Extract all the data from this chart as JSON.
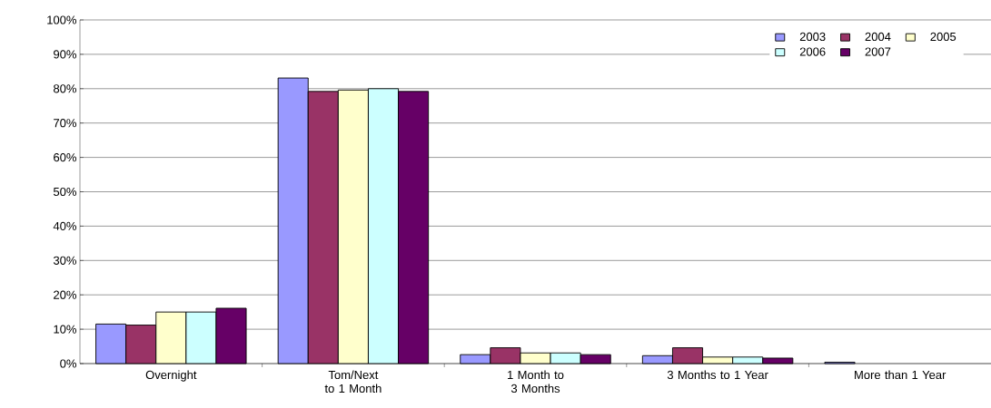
{
  "chart_data": {
    "type": "bar",
    "categories": [
      "Overnight",
      "Tom/Next  to 1 Month",
      "1 Month to 3 Months",
      "3 Months to 1 Year",
      "More than 1 Year"
    ],
    "series": [
      {
        "name": "2003",
        "color": "#9999ff",
        "values": [
          11.5,
          83.1,
          2.6,
          2.3,
          0.4
        ]
      },
      {
        "name": "2004",
        "color": "#993366",
        "values": [
          11.2,
          79.2,
          4.6,
          4.6,
          null
        ]
      },
      {
        "name": "2005",
        "color": "#ffffcc",
        "values": [
          15.0,
          79.6,
          3.1,
          1.9,
          null
        ]
      },
      {
        "name": "2006",
        "color": "#ccffff",
        "values": [
          15.0,
          80.0,
          3.1,
          1.9,
          null
        ]
      },
      {
        "name": "2007",
        "color": "#660066",
        "values": [
          16.1,
          79.2,
          2.6,
          1.6,
          null
        ]
      }
    ],
    "ylim": [
      0,
      100
    ],
    "yticks": [
      {
        "value": 0,
        "label": "0%"
      },
      {
        "value": 10,
        "label": "10%"
      },
      {
        "value": 20,
        "label": "20%"
      },
      {
        "value": 30,
        "label": "30%"
      },
      {
        "value": 40,
        "label": "40%"
      },
      {
        "value": 50,
        "label": "50%"
      },
      {
        "value": 60,
        "label": "60%"
      },
      {
        "value": 70,
        "label": "70%"
      },
      {
        "value": 80,
        "label": "80%"
      },
      {
        "value": 90,
        "label": "90%"
      },
      {
        "value": 100,
        "label": "100%"
      }
    ],
    "grid": "y",
    "legend": "top right"
  }
}
